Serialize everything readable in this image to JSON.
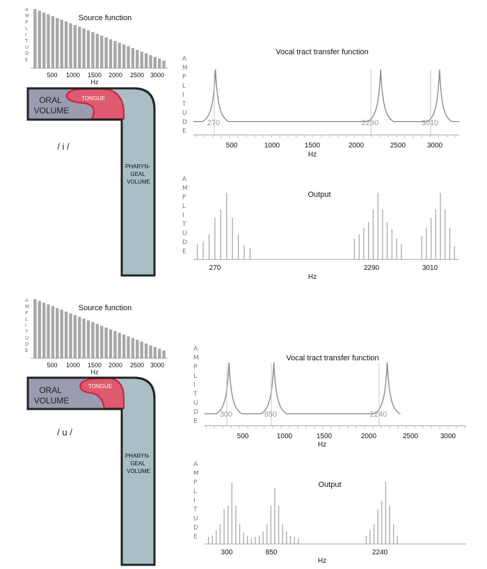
{
  "panels": [
    {
      "phoneme": "/ i /",
      "source_title": "Source function",
      "source_ylabel": "AMPLITUDE",
      "source_ticks": [
        "500",
        "1000",
        "1500",
        "2000",
        "2500",
        "3000"
      ],
      "source_xlabel": "Hz",
      "oral_label": [
        "ORAL",
        "VOLUME"
      ],
      "tongue_label": "TONGUE",
      "pharyngeal_label": [
        "PHARYN-",
        "GEAL",
        "VOLUME"
      ],
      "transfer_title": "Vocal tract transfer function",
      "transfer_ylabel": "AMPLITUDE",
      "transfer_ticks": [
        "500",
        "1000",
        "1500",
        "2000",
        "2500",
        "3000"
      ],
      "transfer_xlabel": "Hz",
      "formants": [
        "270",
        "2290",
        "3010"
      ],
      "output_title": "Output",
      "output_ylabel": "AMPLITUDE",
      "output_ticks": [
        "270",
        "2290",
        "3010"
      ],
      "output_xlabel": "Hz"
    },
    {
      "phoneme": "/ u /",
      "source_title": "Source function",
      "source_ylabel": "AMPLITUDE",
      "source_ticks": [
        "500",
        "1000",
        "1500",
        "2000",
        "2500",
        "3000"
      ],
      "source_xlabel": "Hz",
      "oral_label": [
        "ORAL",
        "VOLUME"
      ],
      "tongue_label": "TONGUE",
      "pharyngeal_label": [
        "PHARYN-",
        "GEAL",
        "VOLUME"
      ],
      "transfer_title": "Vocal tract transfer function",
      "transfer_ylabel": "AMPLITUDE",
      "transfer_ticks": [
        "500",
        "1000",
        "1500",
        "2000",
        "2500",
        "3000"
      ],
      "transfer_xlabel": "Hz",
      "formants": [
        "300",
        "850",
        "2240"
      ],
      "output_title": "Output",
      "output_ylabel": "AMPLITUDE",
      "output_ticks": [
        "300",
        "850",
        "2240"
      ],
      "output_xlabel": "Hz"
    }
  ],
  "colors": {
    "oral_volume": "#9a9ab0",
    "tongue": "#de5a6e",
    "pharyngeal_volume": "#a9bfc8",
    "outline": "#222222",
    "bars": "#a7a7a7",
    "curve": "#8a8a8a",
    "tongue_outline": "#c8203a"
  },
  "chart_data": [
    {
      "panel": "/ i /",
      "type": "bar",
      "title": "Source function",
      "xlabel": "Hz",
      "ylabel": "AMPLITUDE",
      "x_unit": "Hz",
      "harmonic_spacing_hz": 100,
      "x": [
        100,
        200,
        300,
        400,
        500,
        600,
        700,
        800,
        900,
        1000,
        1100,
        1200,
        1300,
        1400,
        1500,
        1600,
        1700,
        1800,
        1900,
        2000,
        2100,
        2200,
        2300,
        2400,
        2500,
        2600,
        2700,
        2800,
        2900,
        3000
      ],
      "values": [
        1.0,
        0.97,
        0.94,
        0.91,
        0.88,
        0.85,
        0.82,
        0.79,
        0.76,
        0.73,
        0.7,
        0.67,
        0.64,
        0.61,
        0.58,
        0.55,
        0.52,
        0.49,
        0.46,
        0.43,
        0.4,
        0.37,
        0.34,
        0.31,
        0.28,
        0.25,
        0.22,
        0.19,
        0.16,
        0.13
      ],
      "xlim": [
        0,
        3100
      ],
      "ylim": [
        0,
        1
      ]
    },
    {
      "panel": "/ i /",
      "type": "line",
      "title": "Vocal tract transfer function",
      "xlabel": "Hz",
      "ylabel": "AMPLITUDE",
      "peaks_hz": [
        270,
        2290,
        3010
      ],
      "peak_bandwidth_hz": [
        160,
        160,
        150
      ],
      "baseline": 0.1,
      "xlim": [
        0,
        3250
      ],
      "ylim": [
        0,
        1
      ]
    },
    {
      "panel": "/ i /",
      "type": "bar",
      "title": "Output",
      "xlabel": "Hz",
      "ylabel": "AMPLITUDE",
      "x": [
        -50,
        25,
        100,
        175,
        250,
        325,
        400,
        475,
        550,
        625,
        1960,
        2020,
        2080,
        2140,
        2200,
        2260,
        2320,
        2380,
        2440,
        2500,
        2560,
        2820,
        2880,
        2940,
        3000,
        3060,
        3120,
        3180,
        3240
      ],
      "values": [
        0.18,
        0.22,
        0.3,
        0.5,
        0.6,
        0.8,
        0.5,
        0.3,
        0.17,
        0.14,
        0.25,
        0.3,
        0.38,
        0.45,
        0.6,
        0.8,
        0.6,
        0.45,
        0.36,
        0.25,
        0.18,
        0.28,
        0.38,
        0.5,
        0.6,
        0.8,
        0.6,
        0.38,
        0.16
      ],
      "xlim": [
        -100,
        3300
      ],
      "ylim": [
        0,
        1
      ]
    },
    {
      "panel": "/ u /",
      "type": "bar",
      "title": "Source function",
      "xlabel": "Hz",
      "ylabel": "AMPLITUDE",
      "x_unit": "Hz",
      "harmonic_spacing_hz": 100,
      "x": [
        100,
        200,
        300,
        400,
        500,
        600,
        700,
        800,
        900,
        1000,
        1100,
        1200,
        1300,
        1400,
        1500,
        1600,
        1700,
        1800,
        1900,
        2000,
        2100,
        2200,
        2300,
        2400,
        2500,
        2600,
        2700,
        2800,
        2900,
        3000
      ],
      "values": [
        1.0,
        0.97,
        0.94,
        0.91,
        0.88,
        0.85,
        0.82,
        0.79,
        0.76,
        0.73,
        0.7,
        0.67,
        0.64,
        0.61,
        0.58,
        0.55,
        0.52,
        0.49,
        0.46,
        0.43,
        0.4,
        0.37,
        0.34,
        0.31,
        0.28,
        0.25,
        0.22,
        0.19,
        0.16,
        0.13
      ],
      "xlim": [
        0,
        3100
      ],
      "ylim": [
        0,
        1
      ]
    },
    {
      "panel": "/ u /",
      "type": "line",
      "title": "Vocal tract transfer function",
      "xlabel": "Hz",
      "ylabel": "AMPLITUDE",
      "peaks_hz": [
        300,
        850,
        2240
      ],
      "peak_bandwidth_hz": [
        160,
        160,
        160
      ],
      "baseline": 0.1,
      "xlim": [
        0,
        3250
      ],
      "ylim": [
        0,
        1
      ]
    },
    {
      "panel": "/ u /",
      "type": "bar",
      "title": "Output",
      "xlabel": "Hz",
      "ylabel": "AMPLITUDE",
      "x": [
        0,
        50,
        100,
        150,
        200,
        250,
        300,
        350,
        400,
        450,
        500,
        550,
        600,
        650,
        700,
        750,
        800,
        850,
        900,
        950,
        1000,
        1050,
        1100,
        1150,
        2020,
        2070,
        2120,
        2170,
        2220,
        2270,
        2320,
        2370,
        2420
      ],
      "values": [
        0.1,
        0.12,
        0.2,
        0.28,
        0.5,
        0.55,
        0.88,
        0.55,
        0.28,
        0.16,
        0.12,
        0.08,
        0.1,
        0.12,
        0.18,
        0.28,
        0.55,
        0.8,
        0.55,
        0.28,
        0.18,
        0.12,
        0.1,
        0.08,
        0.12,
        0.2,
        0.28,
        0.5,
        0.62,
        0.9,
        0.55,
        0.28,
        0.12
      ],
      "xlim": [
        -50,
        3300
      ],
      "ylim": [
        0,
        1
      ]
    }
  ]
}
